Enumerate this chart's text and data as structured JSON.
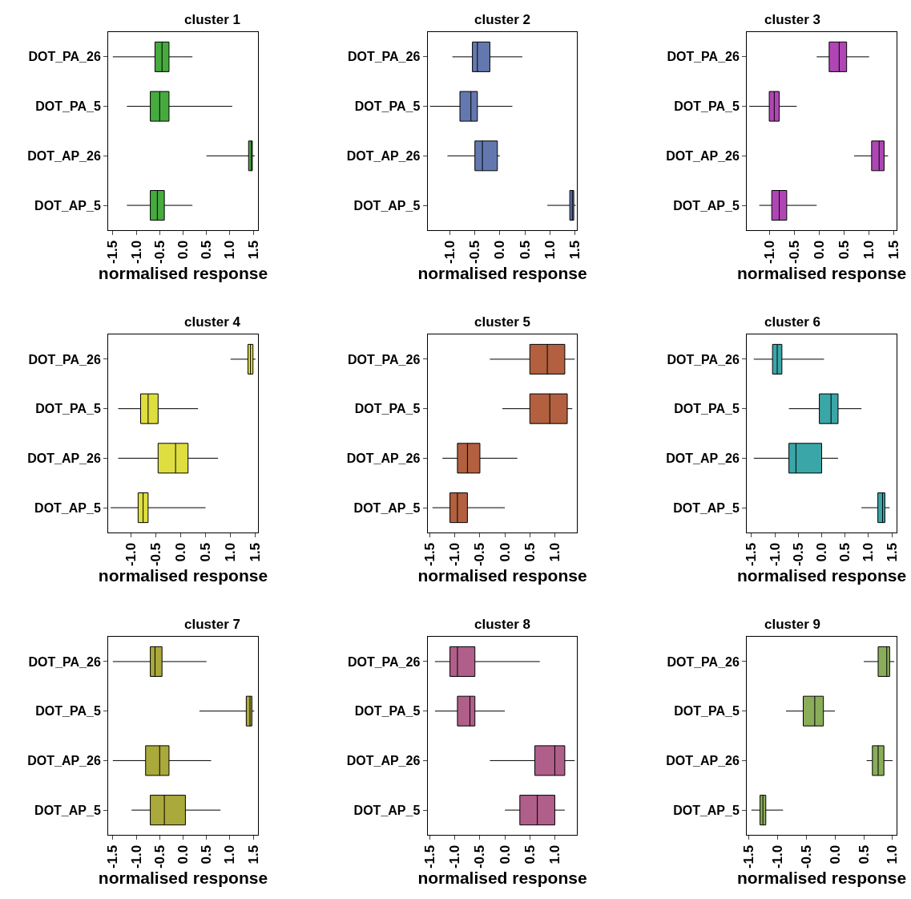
{
  "chart_data": [
    {
      "type": "box",
      "orientation": "horizontal",
      "title": "cluster 1",
      "xlabel": "normalised response",
      "categories": [
        "DOT_PA_26",
        "DOT_PA_5",
        "DOT_AP_26",
        "DOT_AP_5"
      ],
      "xlim": [
        -1.6,
        1.6
      ],
      "xticks": [
        -1.5,
        {
          "value": -1,
          "label": "-1.0"
        },
        -0.5,
        {
          "value": 0,
          "label": "0.0"
        },
        0.5,
        {
          "value": 1,
          "label": "1.0"
        },
        1.5
      ],
      "series": [
        {
          "color": "#46aa3f",
          "boxes": [
            {
              "low": -1.5,
              "q1": -0.6,
              "median": -0.45,
              "q3": -0.3,
              "high": 0.2
            },
            {
              "low": -1.2,
              "q1": -0.7,
              "median": -0.5,
              "q3": -0.3,
              "high": 1.05
            },
            {
              "low": 0.5,
              "q1": 1.4,
              "median": 1.46,
              "q3": 1.48,
              "high": 1.53
            },
            {
              "low": -1.2,
              "q1": -0.7,
              "median": -0.55,
              "q3": -0.4,
              "high": 0.2
            }
          ]
        }
      ]
    },
    {
      "type": "box",
      "orientation": "horizontal",
      "title": "cluster 2",
      "xlabel": "normalised response",
      "categories": [
        "DOT_PA_26",
        "DOT_PA_5",
        "DOT_AP_26",
        "DOT_AP_5"
      ],
      "xlim": [
        -1.45,
        1.55
      ],
      "xticks": [
        {
          "value": -1,
          "label": "-1.0"
        },
        -0.5,
        {
          "value": 0,
          "label": "0.0"
        },
        0.5,
        {
          "value": 1,
          "label": "1.0"
        },
        1.5
      ],
      "series": [
        {
          "color": "#6478b0",
          "boxes": [
            {
              "low": -0.95,
              "q1": -0.55,
              "median": -0.45,
              "q3": -0.2,
              "high": 0.45
            },
            {
              "low": -1.4,
              "q1": -0.8,
              "median": -0.58,
              "q3": -0.45,
              "high": 0.25
            },
            {
              "low": -1.05,
              "q1": -0.5,
              "median": -0.35,
              "q3": -0.05,
              "high": 0.0
            },
            {
              "low": 0.95,
              "q1": 1.4,
              "median": 1.45,
              "q3": 1.48,
              "high": 1.52
            }
          ]
        }
      ]
    },
    {
      "type": "box",
      "orientation": "horizontal",
      "title": "cluster 3",
      "xlabel": "normalised response",
      "categories": [
        "DOT_PA_26",
        "DOT_PA_5",
        "DOT_AP_26",
        "DOT_AP_5"
      ],
      "xlim": [
        -1.45,
        1.55
      ],
      "xticks": [
        {
          "value": -1,
          "label": "-1.0"
        },
        -0.5,
        {
          "value": 0,
          "label": "0.0"
        },
        0.5,
        {
          "value": 1,
          "label": "1.0"
        },
        1.5
      ],
      "series": [
        {
          "color": "#b046b5",
          "boxes": [
            {
              "low": -0.05,
              "q1": 0.2,
              "median": 0.4,
              "q3": 0.55,
              "high": 1.0
            },
            {
              "low": -1.4,
              "q1": -1.0,
              "median": -0.9,
              "q3": -0.8,
              "high": -0.45
            },
            {
              "low": 0.7,
              "q1": 1.05,
              "median": 1.2,
              "q3": 1.3,
              "high": 1.38
            },
            {
              "low": -1.2,
              "q1": -0.95,
              "median": -0.8,
              "q3": -0.65,
              "high": -0.05
            }
          ]
        }
      ]
    },
    {
      "type": "box",
      "orientation": "horizontal",
      "title": "cluster 4",
      "xlabel": "normalised response",
      "categories": [
        "DOT_PA_26",
        "DOT_PA_5",
        "DOT_AP_26",
        "DOT_AP_5"
      ],
      "xlim": [
        -1.45,
        1.55
      ],
      "xticks": [
        {
          "value": -1,
          "label": "-1.0"
        },
        -0.5,
        {
          "value": 0,
          "label": "0.0"
        },
        0.5,
        {
          "value": 1,
          "label": "1.0"
        },
        1.5
      ],
      "series": [
        {
          "color": "#dede40",
          "boxes": [
            {
              "low": 1.0,
              "q1": 1.35,
              "median": 1.4,
              "q3": 1.45,
              "high": 1.5
            },
            {
              "low": -1.25,
              "q1": -0.8,
              "median": -0.65,
              "q3": -0.45,
              "high": 0.35
            },
            {
              "low": -1.25,
              "q1": -0.45,
              "median": -0.1,
              "q3": 0.15,
              "high": 0.75
            },
            {
              "low": -1.4,
              "q1": -0.85,
              "median": -0.75,
              "q3": -0.65,
              "high": 0.5
            }
          ]
        }
      ]
    },
    {
      "type": "box",
      "orientation": "horizontal",
      "title": "cluster 5",
      "xlabel": "normalised response",
      "categories": [
        "DOT_PA_26",
        "DOT_PA_5",
        "DOT_AP_26",
        "DOT_AP_5"
      ],
      "xlim": [
        -1.55,
        1.45
      ],
      "xticks": [
        -1.5,
        {
          "value": -1,
          "label": "-1.0"
        },
        -0.5,
        {
          "value": 0,
          "label": "0.0"
        },
        0.5,
        {
          "value": 1,
          "label": "1.0"
        }
      ],
      "series": [
        {
          "color": "#b2603f",
          "boxes": [
            {
              "low": -0.3,
              "q1": 0.5,
              "median": 0.85,
              "q3": 1.2,
              "high": 1.4
            },
            {
              "low": -0.05,
              "q1": 0.5,
              "median": 0.9,
              "q3": 1.25,
              "high": 1.35
            },
            {
              "low": -1.25,
              "q1": -0.95,
              "median": -0.75,
              "q3": -0.5,
              "high": 0.25
            },
            {
              "low": -1.45,
              "q1": -1.1,
              "median": -0.95,
              "q3": -0.75,
              "high": 0.0
            }
          ]
        }
      ]
    },
    {
      "type": "box",
      "orientation": "horizontal",
      "title": "cluster 6",
      "xlabel": "normalised response",
      "categories": [
        "DOT_PA_26",
        "DOT_PA_5",
        "DOT_AP_26",
        "DOT_AP_5"
      ],
      "xlim": [
        -1.6,
        1.6
      ],
      "xticks": [
        -1.5,
        {
          "value": -1,
          "label": "-1.0"
        },
        -0.5,
        {
          "value": 0,
          "label": "0.0"
        },
        0.5,
        {
          "value": 1,
          "label": "1.0"
        },
        1.5
      ],
      "series": [
        {
          "color": "#3aa6a8",
          "boxes": [
            {
              "low": -1.45,
              "q1": -1.05,
              "median": -0.95,
              "q3": -0.85,
              "high": 0.05
            },
            {
              "low": -0.7,
              "q1": -0.05,
              "median": 0.2,
              "q3": 0.35,
              "high": 0.85
            },
            {
              "low": -1.45,
              "q1": -0.7,
              "median": -0.55,
              "q3": 0.0,
              "high": 0.35
            },
            {
              "low": 0.85,
              "q1": 1.2,
              "median": 1.3,
              "q3": 1.35,
              "high": 1.45
            }
          ]
        }
      ]
    },
    {
      "type": "box",
      "orientation": "horizontal",
      "title": "cluster 7",
      "xlabel": "normalised response",
      "categories": [
        "DOT_PA_26",
        "DOT_PA_5",
        "DOT_AP_26",
        "DOT_AP_5"
      ],
      "xlim": [
        -1.6,
        1.6
      ],
      "xticks": [
        -1.5,
        {
          "value": -1,
          "label": "-1.0"
        },
        -0.5,
        {
          "value": 0,
          "label": "0.0"
        },
        0.5,
        {
          "value": 1,
          "label": "1.0"
        },
        1.5
      ],
      "series": [
        {
          "color": "#aaa93b",
          "boxes": [
            {
              "low": -1.5,
              "q1": -0.7,
              "median": -0.6,
              "q3": -0.45,
              "high": 0.5
            },
            {
              "low": 0.35,
              "q1": 1.35,
              "median": 1.43,
              "q3": 1.47,
              "high": 1.52
            },
            {
              "low": -1.5,
              "q1": -0.8,
              "median": -0.5,
              "q3": -0.3,
              "high": 0.6
            },
            {
              "low": -1.1,
              "q1": -0.7,
              "median": -0.4,
              "q3": 0.05,
              "high": 0.8
            }
          ]
        }
      ]
    },
    {
      "type": "box",
      "orientation": "horizontal",
      "title": "cluster 8",
      "xlabel": "normalised response",
      "categories": [
        "DOT_PA_26",
        "DOT_PA_5",
        "DOT_AP_26",
        "DOT_AP_5"
      ],
      "xlim": [
        -1.55,
        1.45
      ],
      "xticks": [
        -1.5,
        {
          "value": -1,
          "label": "-1.0"
        },
        -0.5,
        {
          "value": 0,
          "label": "0.0"
        },
        0.5,
        {
          "value": 1,
          "label": "1.0"
        }
      ],
      "series": [
        {
          "color": "#b05e8a",
          "boxes": [
            {
              "low": -1.4,
              "q1": -1.1,
              "median": -0.95,
              "q3": -0.6,
              "high": 0.7
            },
            {
              "low": -1.4,
              "q1": -0.95,
              "median": -0.7,
              "q3": -0.6,
              "high": 0.0
            },
            {
              "low": -0.3,
              "q1": 0.6,
              "median": 1.0,
              "q3": 1.2,
              "high": 1.4
            },
            {
              "low": 0.0,
              "q1": 0.3,
              "median": 0.65,
              "q3": 1.0,
              "high": 1.2
            }
          ]
        }
      ]
    },
    {
      "type": "box",
      "orientation": "horizontal",
      "title": "cluster 9",
      "xlabel": "normalised response",
      "categories": [
        "DOT_PA_26",
        "DOT_PA_5",
        "DOT_AP_26",
        "DOT_AP_5"
      ],
      "xlim": [
        -1.53,
        1.07
      ],
      "xticks": [
        -1.5,
        {
          "value": -1,
          "label": "-1.0"
        },
        -0.5,
        {
          "value": 0,
          "label": "0.0"
        },
        0.5,
        {
          "value": 1,
          "label": "1.0"
        }
      ],
      "series": [
        {
          "color": "#8aad5a",
          "boxes": [
            {
              "low": 0.5,
              "q1": 0.75,
              "median": 0.9,
              "q3": 0.95,
              "high": 1.03
            },
            {
              "low": -0.85,
              "q1": -0.55,
              "median": -0.35,
              "q3": -0.2,
              "high": 0.0
            },
            {
              "low": 0.55,
              "q1": 0.65,
              "median": 0.75,
              "q3": 0.85,
              "high": 1.0
            },
            {
              "low": -1.45,
              "q1": -1.3,
              "median": -1.25,
              "q3": -1.2,
              "high": -0.9
            }
          ]
        }
      ]
    }
  ]
}
